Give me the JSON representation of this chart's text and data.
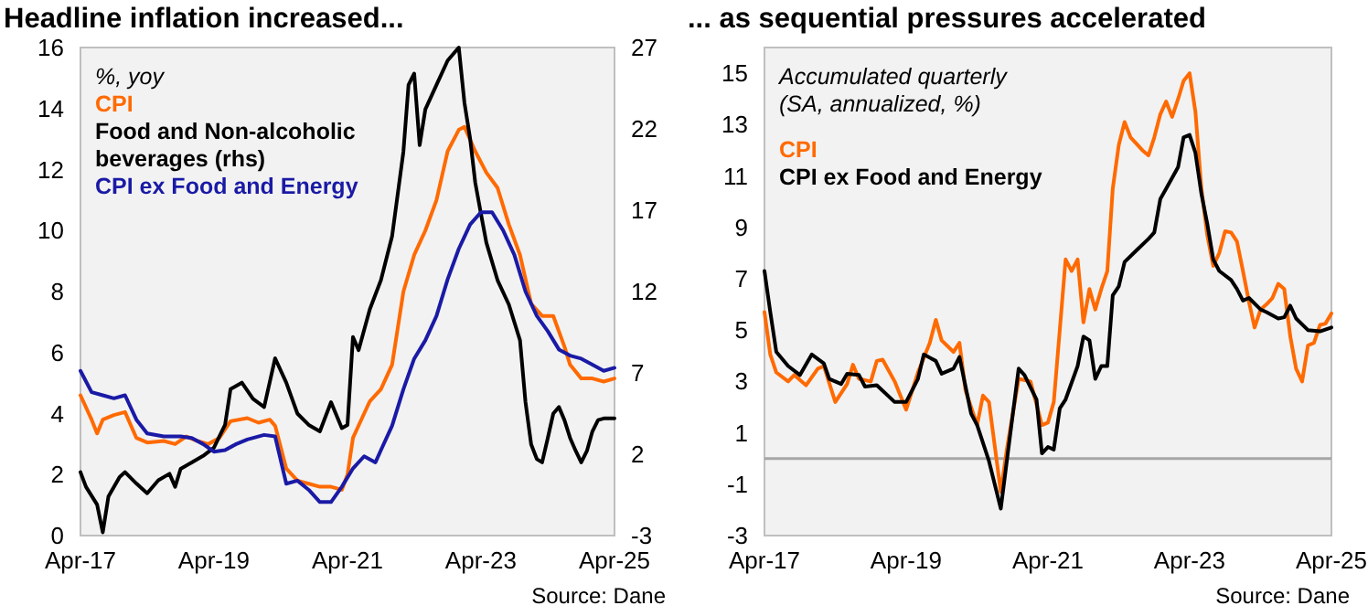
{
  "chart_data": [
    {
      "type": "line",
      "title": "Headline inflation increased...",
      "legend_title": "%, yoy",
      "legend": "top left",
      "grid": false,
      "annotations": [
        "Source: Dane"
      ],
      "xlim": [
        "2017-04",
        "2025-04"
      ],
      "xticks": [
        {
          "value": "2017-04",
          "label": "Apr-17"
        },
        {
          "value": "2019-04",
          "label": "Apr-19"
        },
        {
          "value": "2021-04",
          "label": "Apr-21"
        },
        {
          "value": "2023-04",
          "label": "Apr-23"
        },
        {
          "value": "2025-04",
          "label": "Apr-25"
        }
      ],
      "ylim": [
        0,
        16
      ],
      "yticks": [
        0,
        2,
        4,
        6,
        8,
        10,
        12,
        14,
        16
      ],
      "y2lim": [
        -3,
        27
      ],
      "y2ticks": [
        -3,
        2,
        7,
        12,
        17,
        22,
        27
      ],
      "series": [
        {
          "name": "CPI",
          "color": "#ff6a00",
          "x": [
            "2017-04",
            "2017-06",
            "2017-07",
            "2017-08",
            "2017-10",
            "2017-12",
            "2018-02",
            "2018-04",
            "2018-07",
            "2018-09",
            "2018-11",
            "2019-01",
            "2019-03",
            "2019-05",
            "2019-07",
            "2019-10",
            "2019-12",
            "2020-02",
            "2020-03",
            "2020-05",
            "2020-07",
            "2020-09",
            "2020-11",
            "2021-01",
            "2021-03",
            "2021-04",
            "2021-05",
            "2021-07",
            "2021-08",
            "2021-10",
            "2021-12",
            "2022-02",
            "2022-04",
            "2022-06",
            "2022-08",
            "2022-10",
            "2022-12",
            "2023-01",
            "2023-03",
            "2023-05",
            "2023-07",
            "2023-09",
            "2023-11",
            "2024-01",
            "2024-03",
            "2024-05",
            "2024-07",
            "2024-08",
            "2024-10",
            "2024-12",
            "2025-02",
            "2025-04"
          ],
          "values": [
            4.6,
            3.8,
            3.35,
            3.8,
            3.95,
            4.05,
            3.2,
            3.05,
            3.1,
            3.0,
            3.25,
            3.1,
            3.0,
            3.2,
            3.75,
            3.85,
            3.7,
            3.8,
            3.6,
            2.2,
            1.8,
            1.7,
            1.6,
            1.6,
            1.5,
            2.0,
            3.2,
            4.0,
            4.4,
            4.8,
            5.6,
            8.0,
            9.2,
            10.0,
            11.0,
            12.6,
            13.3,
            13.4,
            12.6,
            11.9,
            11.4,
            10.2,
            9.2,
            7.6,
            7.2,
            7.2,
            6.2,
            5.6,
            5.15,
            5.15,
            5.05,
            5.15
          ]
        },
        {
          "name": "Food and Non-alcoholic beverages (rhs)",
          "color": "#000000",
          "axis": "y2",
          "x": [
            "2017-04",
            "2017-05",
            "2017-07",
            "2017-08",
            "2017-09",
            "2017-11",
            "2017-12",
            "2018-02",
            "2018-04",
            "2018-06",
            "2018-08",
            "2018-09",
            "2018-10",
            "2018-12",
            "2019-02",
            "2019-04",
            "2019-06",
            "2019-07",
            "2019-08",
            "2019-09",
            "2019-11",
            "2020-01",
            "2020-03",
            "2020-05",
            "2020-07",
            "2020-09",
            "2020-11",
            "2021-01",
            "2021-03",
            "2021-04",
            "2021-05",
            "2021-06",
            "2021-08",
            "2021-10",
            "2021-12",
            "2022-02",
            "2022-03",
            "2022-04",
            "2022-05",
            "2022-06",
            "2022-08",
            "2022-10",
            "2022-12",
            "2023-01",
            "2023-02",
            "2023-03",
            "2023-04",
            "2023-05",
            "2023-07",
            "2023-09",
            "2023-11",
            "2023-12",
            "2024-01",
            "2024-02",
            "2024-03",
            "2024-04",
            "2024-05",
            "2024-06",
            "2024-07",
            "2024-08",
            "2024-09",
            "2024-10",
            "2024-11",
            "2024-12",
            "2025-01",
            "2025-02",
            "2025-04"
          ],
          "values": [
            0.9,
            0.0,
            -1.1,
            -2.8,
            -0.6,
            0.6,
            0.9,
            0.2,
            -0.4,
            0.4,
            0.8,
            0.0,
            1.1,
            1.5,
            1.9,
            2.4,
            3.8,
            6.0,
            6.2,
            6.4,
            5.4,
            4.9,
            7.9,
            6.4,
            4.5,
            3.8,
            3.4,
            5.2,
            3.6,
            3.8,
            9.2,
            8.4,
            10.9,
            12.7,
            15.4,
            20.6,
            24.7,
            25.4,
            21.0,
            23.2,
            24.7,
            26.2,
            27.0,
            23.6,
            21.4,
            18.7,
            16.8,
            15.0,
            12.7,
            11.2,
            9.0,
            5.2,
            2.6,
            1.7,
            1.5,
            3.0,
            4.5,
            4.9,
            4.1,
            3.0,
            2.2,
            1.5,
            2.2,
            3.4,
            4.1,
            4.2,
            4.2
          ]
        },
        {
          "name": "CPI ex Food and Energy",
          "color": "#1a1aa6",
          "x": [
            "2017-04",
            "2017-06",
            "2017-08",
            "2017-10",
            "2017-12",
            "2018-02",
            "2018-04",
            "2018-07",
            "2018-10",
            "2018-12",
            "2019-02",
            "2019-04",
            "2019-06",
            "2019-08",
            "2019-10",
            "2020-01",
            "2020-03",
            "2020-05",
            "2020-07",
            "2020-09",
            "2020-11",
            "2021-01",
            "2021-03",
            "2021-05",
            "2021-07",
            "2021-09",
            "2021-10",
            "2021-12",
            "2022-02",
            "2022-04",
            "2022-06",
            "2022-08",
            "2022-10",
            "2022-12",
            "2023-02",
            "2023-04",
            "2023-06",
            "2023-08",
            "2023-10",
            "2023-12",
            "2024-02",
            "2024-04",
            "2024-06",
            "2024-08",
            "2024-10",
            "2024-12",
            "2025-02",
            "2025-04"
          ],
          "values": [
            5.4,
            4.7,
            4.6,
            4.5,
            4.6,
            3.8,
            3.35,
            3.25,
            3.25,
            3.2,
            3.0,
            2.75,
            2.8,
            3.0,
            3.15,
            3.3,
            3.25,
            1.7,
            1.8,
            1.5,
            1.1,
            1.1,
            1.6,
            2.2,
            2.6,
            2.4,
            2.8,
            3.6,
            4.8,
            5.8,
            6.4,
            7.2,
            8.4,
            9.4,
            10.2,
            10.6,
            10.6,
            10.0,
            9.2,
            8.0,
            7.2,
            6.7,
            6.1,
            5.9,
            5.8,
            5.6,
            5.4,
            5.5
          ]
        }
      ]
    },
    {
      "type": "line",
      "title": "... as sequential pressures accelerated",
      "legend_title": "Accumulated quarterly (SA, annualized, %)",
      "legend": "top left",
      "grid": false,
      "annotations": [
        "Source: Dane"
      ],
      "xlim": [
        "2017-04",
        "2025-04"
      ],
      "xticks": [
        {
          "value": "2017-04",
          "label": "Apr-17"
        },
        {
          "value": "2019-04",
          "label": "Apr-19"
        },
        {
          "value": "2021-04",
          "label": "Apr-21"
        },
        {
          "value": "2023-04",
          "label": "Apr-23"
        },
        {
          "value": "2025-04",
          "label": "Apr-25"
        }
      ],
      "ylim": [
        -3,
        16
      ],
      "yticks": [
        -3,
        -1,
        1,
        3,
        5,
        7,
        9,
        11,
        13,
        15
      ],
      "ref_lines": [
        {
          "axis": "y",
          "value": 0,
          "label": null,
          "color": "#a6a6a6"
        }
      ],
      "series": [
        {
          "name": "CPI",
          "color": "#ff6a00",
          "x": [
            "2017-04",
            "2017-05",
            "2017-06",
            "2017-08",
            "2017-09",
            "2017-11",
            "2018-01",
            "2018-02",
            "2018-04",
            "2018-06",
            "2018-07",
            "2018-08",
            "2018-10",
            "2018-11",
            "2018-12",
            "2019-02",
            "2019-04",
            "2019-06",
            "2019-08",
            "2019-09",
            "2019-10",
            "2019-12",
            "2020-01",
            "2020-02",
            "2020-04",
            "2020-05",
            "2020-06",
            "2020-08",
            "2020-09",
            "2020-11",
            "2021-01",
            "2021-03",
            "2021-04",
            "2021-05",
            "2021-06",
            "2021-07",
            "2021-08",
            "2021-09",
            "2021-10",
            "2021-11",
            "2021-12",
            "2022-01",
            "2022-02",
            "2022-03",
            "2022-04",
            "2022-05",
            "2022-06",
            "2022-08",
            "2022-09",
            "2022-10",
            "2022-11",
            "2022-12",
            "2023-01",
            "2023-02",
            "2023-03",
            "2023-04",
            "2023-05",
            "2023-06",
            "2023-07",
            "2023-08",
            "2023-09",
            "2023-10",
            "2023-11",
            "2023-12",
            "2024-01",
            "2024-02",
            "2024-03",
            "2024-04",
            "2024-05",
            "2024-06",
            "2024-07",
            "2024-08",
            "2024-09",
            "2024-10",
            "2024-11",
            "2024-12",
            "2025-01",
            "2025-02",
            "2025-03",
            "2025-04"
          ],
          "values": [
            5.7,
            4.05,
            3.35,
            3.0,
            3.25,
            2.85,
            3.5,
            3.6,
            2.2,
            2.9,
            3.65,
            3.1,
            3.0,
            3.8,
            3.85,
            3.0,
            1.9,
            3.35,
            4.5,
            5.4,
            4.6,
            4.15,
            4.5,
            2.65,
            1.3,
            2.45,
            2.2,
            -1.3,
            0.35,
            3.1,
            3.0,
            1.3,
            1.4,
            2.2,
            5.0,
            7.75,
            7.3,
            7.75,
            5.3,
            6.6,
            5.8,
            6.6,
            7.3,
            10.5,
            12.2,
            13.1,
            12.5,
            12.0,
            11.8,
            12.5,
            13.4,
            13.9,
            13.3,
            14.0,
            14.7,
            15.0,
            13.5,
            10.5,
            8.7,
            7.5,
            8.0,
            8.85,
            8.8,
            8.45,
            7.3,
            6.1,
            5.1,
            5.8,
            6.0,
            6.25,
            6.8,
            6.6,
            4.75,
            3.5,
            3.0,
            4.4,
            4.5,
            5.2,
            5.25,
            5.65
          ]
        },
        {
          "name": "CPI ex Food and Energy",
          "color": "#000000",
          "x": [
            "2017-04",
            "2017-05",
            "2017-06",
            "2017-08",
            "2017-10",
            "2017-12",
            "2018-02",
            "2018-03",
            "2018-05",
            "2018-06",
            "2018-08",
            "2018-09",
            "2018-11",
            "2019-02",
            "2019-04",
            "2019-06",
            "2019-07",
            "2019-09",
            "2019-10",
            "2019-12",
            "2020-01",
            "2020-03",
            "2020-04",
            "2020-06",
            "2020-08",
            "2020-09",
            "2020-11",
            "2020-12",
            "2021-02",
            "2021-03",
            "2021-04",
            "2021-05",
            "2021-06",
            "2021-07",
            "2021-09",
            "2021-10",
            "2021-11",
            "2021-12",
            "2022-01",
            "2022-02",
            "2022-03",
            "2022-04",
            "2022-05",
            "2022-07",
            "2022-09",
            "2022-10",
            "2022-11",
            "2022-12",
            "2023-02",
            "2023-03",
            "2023-04",
            "2023-05",
            "2023-06",
            "2023-07",
            "2023-08",
            "2023-09",
            "2023-11",
            "2023-12",
            "2024-01",
            "2024-02",
            "2024-04",
            "2024-05",
            "2024-07",
            "2024-08",
            "2024-09",
            "2024-10",
            "2024-12",
            "2025-02",
            "2025-04"
          ],
          "values": [
            7.3,
            5.7,
            4.15,
            3.6,
            3.25,
            4.05,
            3.7,
            3.1,
            2.9,
            3.3,
            3.25,
            2.8,
            2.85,
            2.2,
            2.2,
            3.1,
            4.05,
            3.8,
            3.3,
            3.5,
            3.95,
            1.75,
            1.3,
            -0.1,
            -1.95,
            -0.1,
            3.5,
            3.25,
            2.3,
            0.2,
            0.45,
            0.35,
            1.95,
            2.3,
            3.6,
            4.75,
            4.6,
            3.1,
            3.6,
            3.6,
            6.35,
            6.7,
            7.65,
            8.1,
            8.55,
            8.8,
            10.1,
            10.5,
            11.35,
            12.5,
            12.6,
            11.9,
            10.3,
            9.15,
            7.75,
            7.3,
            6.95,
            6.6,
            6.15,
            6.25,
            5.8,
            5.7,
            5.45,
            5.5,
            5.95,
            5.45,
            5.0,
            4.95,
            5.1
          ]
        }
      ]
    }
  ]
}
